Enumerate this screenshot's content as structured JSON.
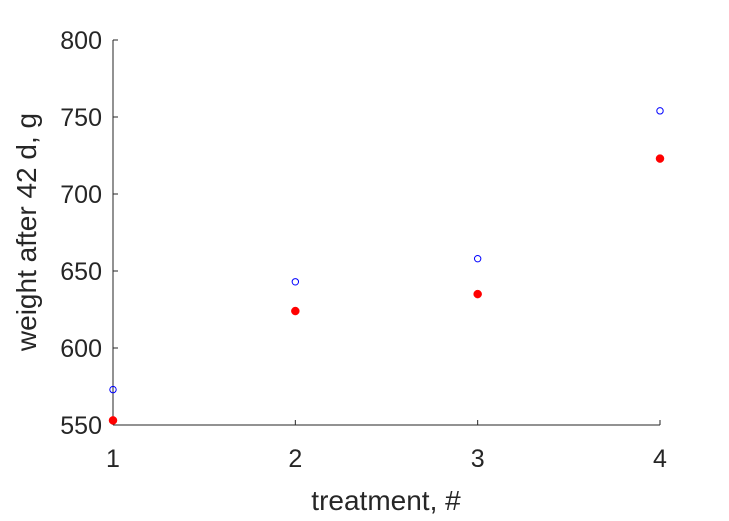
{
  "chart_data": {
    "type": "scatter",
    "title": "",
    "xlabel": "treatment, #",
    "ylabel": "weight after 42 d, g",
    "xlim": [
      1,
      4
    ],
    "ylim": [
      550,
      800
    ],
    "xticks": [
      1,
      2,
      3,
      4
    ],
    "yticks": [
      550,
      600,
      650,
      700,
      750,
      800
    ],
    "grid": false,
    "legend": null,
    "series": [
      {
        "marker": "open-circle",
        "color": "#0000ff",
        "x": [
          1,
          2,
          3,
          4
        ],
        "y": [
          573,
          643,
          658,
          754
        ]
      },
      {
        "marker": "filled-circle",
        "color": "#ff0000",
        "x": [
          1,
          2,
          3,
          4
        ],
        "y": [
          553,
          624,
          635,
          723
        ]
      }
    ]
  }
}
